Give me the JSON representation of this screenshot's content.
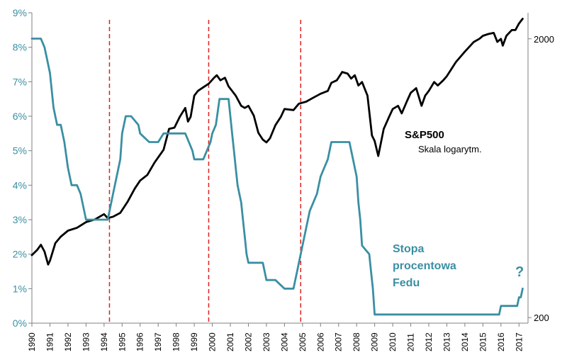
{
  "chart_data": {
    "type": "line",
    "colors": {
      "sp500": "#000000",
      "fed": "#3a8fa3",
      "vline": "#e02020",
      "axis": "#808080"
    },
    "x_range": [
      1990,
      2017.5
    ],
    "x_ticks": [
      "1990",
      "1991",
      "1992",
      "1993",
      "1994",
      "1995",
      "1996",
      "1997",
      "1998",
      "1999",
      "2000",
      "2001",
      "2002",
      "2003",
      "2004",
      "2005",
      "2006",
      "2007",
      "2008",
      "2009",
      "2010",
      "2011",
      "2012",
      "2013",
      "2014",
      "2015",
      "2016",
      "2017"
    ],
    "left_axis": {
      "label": "Stopa procentowa Fedu",
      "ylim": [
        0,
        9
      ],
      "ticks": [
        "0%",
        "1%",
        "2%",
        "3%",
        "4%",
        "5%",
        "6%",
        "7%",
        "8%",
        "9%"
      ]
    },
    "right_axis": {
      "label": "S&P500 (skala logarytmiczna)",
      "scale": "log",
      "ylim": [
        191,
        2480
      ],
      "ticks": [
        "200",
        "2000"
      ]
    },
    "vertical_lines": [
      1994.3,
      1999.8,
      2004.9
    ],
    "annotations": {
      "sp_title": "S&P500",
      "sp_subtitle": "Skala logarytm.",
      "fed_label": [
        "Stopa",
        "procentowa",
        "Fedu"
      ],
      "question_mark": "?"
    },
    "series": [
      {
        "name": "S&P500",
        "axis": "right",
        "x": [
          1990.0,
          1990.3,
          1990.5,
          1990.7,
          1990.9,
          1991.0,
          1991.3,
          1991.6,
          1992.0,
          1992.5,
          1993.0,
          1993.5,
          1994.0,
          1994.2,
          1994.5,
          1994.9,
          1995.3,
          1995.7,
          1996.0,
          1996.4,
          1996.8,
          1997.3,
          1997.6,
          1997.9,
          1998.2,
          1998.5,
          1998.65,
          1998.8,
          1999.0,
          1999.2,
          1999.5,
          1999.8,
          2000.1,
          2000.25,
          2000.45,
          2000.7,
          2000.9,
          2001.1,
          2001.3,
          2001.6,
          2001.8,
          2002.0,
          2002.3,
          2002.55,
          2002.8,
          2003.0,
          2003.2,
          2003.5,
          2003.8,
          2004.0,
          2004.5,
          2004.8,
          2005.2,
          2005.6,
          2006.0,
          2006.4,
          2006.6,
          2006.9,
          2007.2,
          2007.5,
          2007.7,
          2007.9,
          2008.1,
          2008.3,
          2008.6,
          2008.85,
          2009.0,
          2009.2,
          2009.5,
          2009.8,
          2010.0,
          2010.3,
          2010.5,
          2010.8,
          2011.0,
          2011.3,
          2011.6,
          2011.8,
          2012.0,
          2012.3,
          2012.5,
          2012.8,
          2013.0,
          2013.5,
          2014.0,
          2014.5,
          2014.8,
          2015.0,
          2015.3,
          2015.6,
          2015.8,
          2016.0,
          2016.1,
          2016.3,
          2016.6,
          2016.8,
          2017.0,
          2017.2
        ],
        "values": [
          335,
          350,
          365,
          345,
          310,
          320,
          370,
          390,
          410,
          420,
          440,
          450,
          470,
          455,
          460,
          475,
          520,
          580,
          620,
          650,
          720,
          800,
          950,
          960,
          1050,
          1130,
          1010,
          1050,
          1250,
          1300,
          1340,
          1380,
          1450,
          1480,
          1420,
          1450,
          1350,
          1300,
          1250,
          1150,
          1130,
          1150,
          1060,
          920,
          870,
          850,
          880,
          980,
          1050,
          1120,
          1110,
          1170,
          1190,
          1230,
          1270,
          1300,
          1390,
          1420,
          1520,
          1500,
          1440,
          1480,
          1360,
          1400,
          1250,
          900,
          860,
          760,
          950,
          1050,
          1120,
          1150,
          1080,
          1200,
          1280,
          1330,
          1150,
          1250,
          1300,
          1400,
          1360,
          1420,
          1470,
          1650,
          1800,
          1950,
          2000,
          2050,
          2080,
          2100,
          1950,
          2000,
          1890,
          2050,
          2150,
          2150,
          2270,
          2360
        ]
      },
      {
        "name": "Stopa procentowa Fedu",
        "axis": "left",
        "x": [
          1990.0,
          1990.5,
          1990.7,
          1990.8,
          1991.0,
          1991.1,
          1991.2,
          1991.4,
          1991.6,
          1991.8,
          1992.0,
          1992.2,
          1992.5,
          1992.7,
          1993.0,
          1993.5,
          1994.0,
          1994.2,
          1994.3,
          1994.5,
          1994.7,
          1994.9,
          1995.0,
          1995.2,
          1995.5,
          1995.9,
          1996.0,
          1996.5,
          1997.0,
          1997.3,
          1998.0,
          1998.5,
          1998.7,
          1998.9,
          1999.0,
          1999.5,
          1999.7,
          1999.9,
          2000.0,
          2000.2,
          2000.4,
          2000.9,
          2001.0,
          2001.1,
          2001.2,
          2001.3,
          2001.4,
          2001.5,
          2001.6,
          2001.7,
          2001.8,
          2001.9,
          2002.0,
          2002.8,
          2003.0,
          2003.5,
          2004.0,
          2004.5,
          2004.6,
          2004.7,
          2004.8,
          2005.0,
          2005.2,
          2005.4,
          2005.6,
          2005.8,
          2006.0,
          2006.2,
          2006.4,
          2006.6,
          2007.0,
          2007.6,
          2007.8,
          2007.9,
          2008.0,
          2008.1,
          2008.2,
          2008.3,
          2008.7,
          2008.8,
          2008.9,
          2009.0,
          2015.0,
          2015.9,
          2016.0,
          2016.9,
          2017.0,
          2017.1,
          2017.2
        ],
        "values": [
          8.25,
          8.25,
          8.0,
          7.75,
          7.25,
          6.75,
          6.25,
          5.75,
          5.75,
          5.25,
          4.5,
          4.0,
          4.0,
          3.75,
          3.0,
          3.0,
          3.0,
          3.0,
          3.25,
          3.75,
          4.25,
          4.75,
          5.5,
          6.0,
          6.0,
          5.75,
          5.5,
          5.25,
          5.25,
          5.5,
          5.5,
          5.5,
          5.25,
          5.0,
          4.75,
          4.75,
          5.0,
          5.25,
          5.5,
          5.75,
          6.5,
          6.5,
          6.0,
          5.5,
          5.0,
          4.5,
          4.0,
          3.75,
          3.5,
          3.0,
          2.5,
          2.0,
          1.75,
          1.75,
          1.25,
          1.25,
          1.0,
          1.0,
          1.25,
          1.5,
          1.75,
          2.25,
          2.75,
          3.25,
          3.5,
          3.75,
          4.25,
          4.5,
          4.75,
          5.25,
          5.25,
          5.25,
          4.75,
          4.5,
          4.25,
          3.5,
          3.0,
          2.25,
          2.0,
          1.5,
          1.0,
          0.25,
          0.25,
          0.25,
          0.5,
          0.5,
          0.75,
          0.75,
          1.0
        ]
      }
    ]
  }
}
